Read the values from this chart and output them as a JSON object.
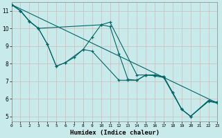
{
  "xlabel": "Humidex (Indice chaleur)",
  "background_color": "#c8eaea",
  "grid_color": "#d0b8b8",
  "line_color": "#006666",
  "xlim": [
    0,
    23
  ],
  "ylim": [
    4.7,
    11.5
  ],
  "xticks": [
    0,
    1,
    2,
    3,
    4,
    5,
    6,
    7,
    8,
    9,
    10,
    11,
    12,
    13,
    14,
    15,
    16,
    17,
    18,
    19,
    20,
    21,
    22,
    23
  ],
  "yticks": [
    5,
    6,
    7,
    8,
    9,
    10,
    11
  ],
  "line1": {
    "x": [
      0,
      1,
      2,
      3,
      4,
      5,
      6,
      7,
      8,
      9,
      10,
      11,
      12,
      13,
      14,
      15,
      16,
      17,
      18,
      19,
      20,
      22,
      23
    ],
    "y": [
      11.35,
      11.0,
      10.4,
      10.0,
      9.1,
      7.85,
      8.05,
      8.35,
      8.8,
      9.5,
      10.2,
      10.1,
      8.55,
      7.1,
      7.05,
      7.35,
      7.35,
      7.25,
      6.35,
      5.4,
      5.0,
      5.9,
      5.8
    ]
  },
  "line2": {
    "x": [
      0,
      1,
      2,
      3,
      4,
      5,
      6,
      8,
      9,
      12,
      13,
      14,
      15,
      16,
      17,
      18,
      19,
      20,
      22,
      23
    ],
    "y": [
      11.35,
      11.0,
      10.4,
      10.0,
      9.1,
      7.85,
      8.05,
      8.8,
      8.7,
      7.05,
      7.05,
      7.05,
      7.35,
      7.35,
      7.25,
      6.35,
      5.4,
      5.0,
      5.9,
      5.8
    ]
  },
  "line3": {
    "x": [
      0,
      1,
      2,
      3,
      10,
      11,
      14,
      15,
      16,
      17,
      19,
      20,
      22,
      23
    ],
    "y": [
      11.35,
      11.0,
      10.4,
      10.0,
      10.2,
      10.35,
      7.35,
      7.35,
      7.3,
      7.2,
      5.4,
      5.0,
      5.85,
      5.75
    ]
  },
  "straight_line": {
    "x": [
      0,
      23
    ],
    "y": [
      11.35,
      5.75
    ]
  }
}
